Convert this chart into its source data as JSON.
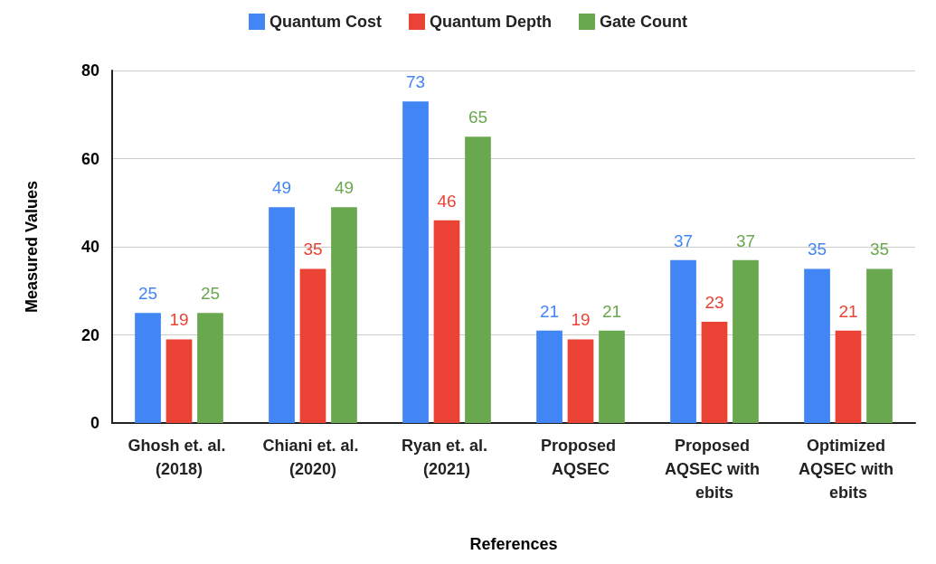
{
  "chart_data": {
    "type": "bar",
    "xlabel": "References",
    "ylabel": "Measured Values",
    "categories": [
      "Ghosh et. al. (2018)",
      "Chiani et. al. (2020)",
      "Ryan et. al. (2021)",
      "Proposed AQSEC",
      "Proposed AQSEC with ebits",
      "Optimized AQSEC with ebits"
    ],
    "series": [
      {
        "name": "Quantum Cost",
        "color": "#4285f4",
        "values": [
          25,
          49,
          73,
          21,
          37,
          35
        ]
      },
      {
        "name": "Quantum Depth",
        "color": "#ea4335",
        "values": [
          19,
          35,
          46,
          19,
          23,
          21
        ]
      },
      {
        "name": "Gate Count",
        "color": "#6aa84f",
        "values": [
          25,
          49,
          65,
          21,
          37,
          35
        ]
      }
    ],
    "ylim": [
      0,
      80
    ],
    "yticks": [
      0,
      20,
      40,
      60,
      80
    ],
    "grid": "y",
    "legend": "top",
    "data_labels": true
  }
}
